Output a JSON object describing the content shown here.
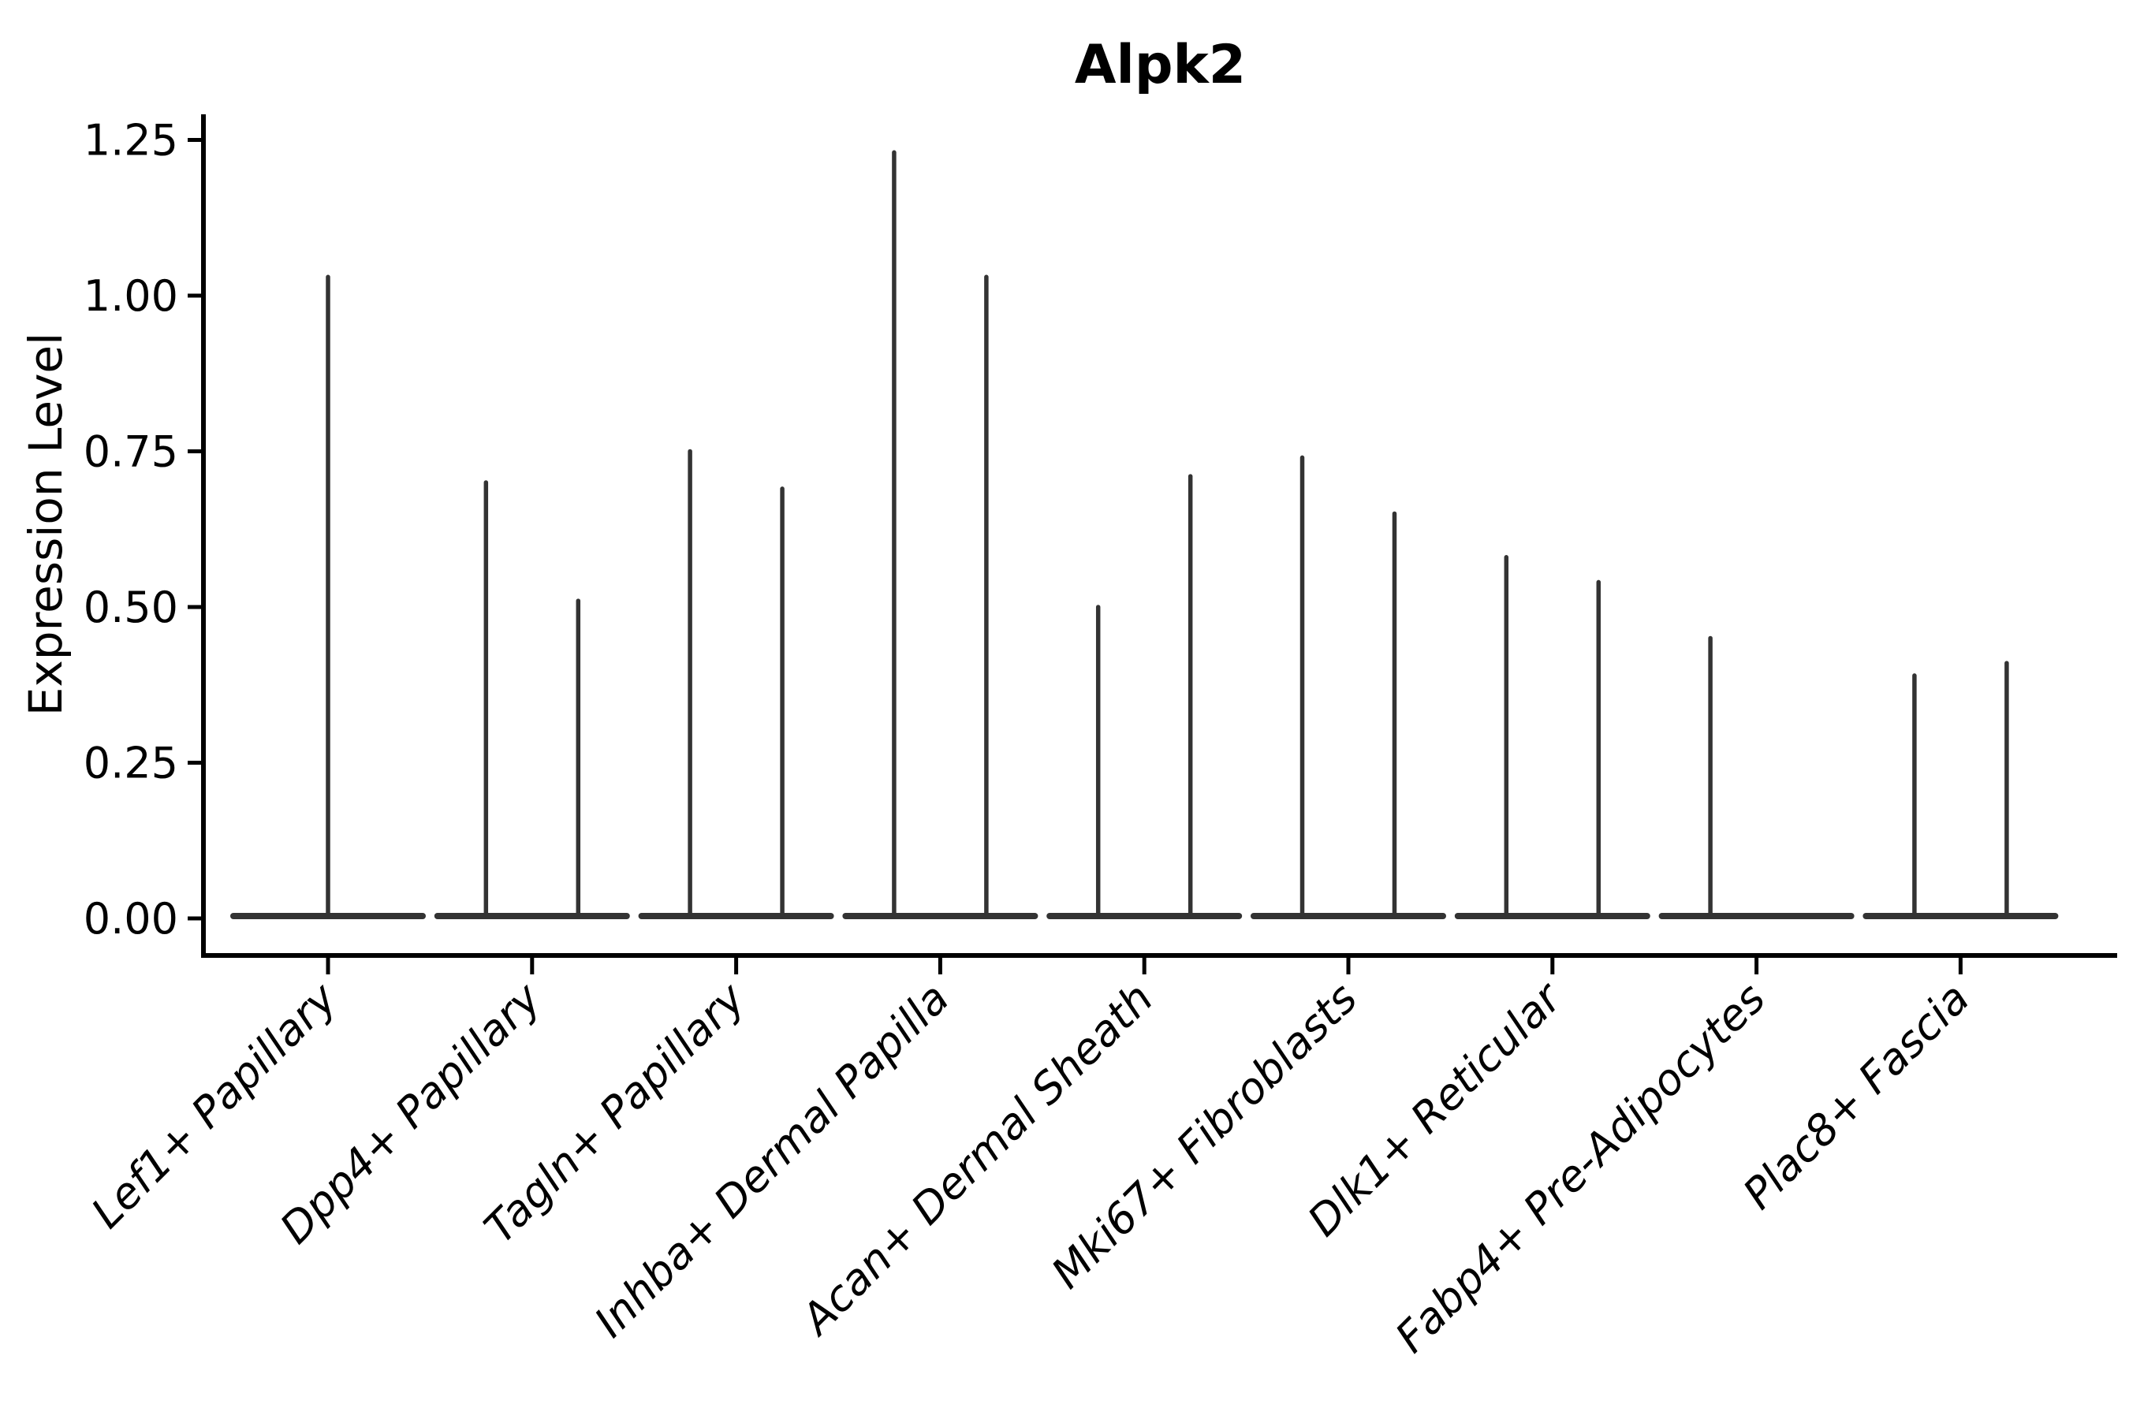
{
  "chart_data": {
    "type": "violin",
    "title": "Alpk2",
    "ylabel": "Expression Level",
    "xlabel": "",
    "ylim": [
      0,
      1.25
    ],
    "yticks": [
      "0.00",
      "0.25",
      "0.50",
      "0.75",
      "1.00",
      "1.25"
    ],
    "ytick_values": [
      0,
      0.25,
      0.5,
      0.75,
      1.0,
      1.25
    ],
    "grid": false,
    "legend": "none",
    "violin_color": "#333333",
    "axis_color": "#000000",
    "categories": [
      "Lef1+ Papillary",
      "Dpp4+ Papillary",
      "Tagln+ Papillary",
      "Inhba+ Dermal Papilla",
      "Acan+ Dermal Sheath",
      "Mki67+ Fibroblasts",
      "Dlk1+ Reticular",
      "Fabp4+ Pre-Adipocytes",
      "Plac8+ Fascia"
    ],
    "violins": [
      {
        "label": "Lef1+ Papillary",
        "base_at_zero": true,
        "spikes": [
          {
            "offset": 0,
            "max": 1.03
          }
        ]
      },
      {
        "label": "Dpp4+ Papillary",
        "base_at_zero": true,
        "spikes": [
          {
            "offset": -0.226,
            "max": 0.7
          },
          {
            "offset": 0.226,
            "max": 0.51
          }
        ]
      },
      {
        "label": "Tagln+ Papillary",
        "base_at_zero": true,
        "spikes": [
          {
            "offset": -0.226,
            "max": 0.75
          },
          {
            "offset": 0.226,
            "max": 0.69
          }
        ]
      },
      {
        "label": "Inhba+ Dermal Papilla",
        "base_at_zero": true,
        "spikes": [
          {
            "offset": -0.226,
            "max": 1.23
          },
          {
            "offset": 0.226,
            "max": 1.03
          }
        ]
      },
      {
        "label": "Acan+ Dermal Sheath",
        "base_at_zero": true,
        "spikes": [
          {
            "offset": -0.226,
            "max": 0.5
          },
          {
            "offset": 0.226,
            "max": 0.71
          }
        ]
      },
      {
        "label": "Mki67+ Fibroblasts",
        "base_at_zero": true,
        "spikes": [
          {
            "offset": -0.226,
            "max": 0.74
          },
          {
            "offset": 0.226,
            "max": 0.65
          }
        ]
      },
      {
        "label": "Dlk1+ Reticular",
        "base_at_zero": true,
        "spikes": [
          {
            "offset": -0.226,
            "max": 0.58
          },
          {
            "offset": 0.226,
            "max": 0.54
          }
        ]
      },
      {
        "label": "Fabp4+ Pre-Adipocytes",
        "base_at_zero": true,
        "spikes": [
          {
            "offset": -0.226,
            "max": 0.45
          }
        ]
      },
      {
        "label": "Plac8+ Fascia",
        "base_at_zero": true,
        "spikes": [
          {
            "offset": -0.226,
            "max": 0.39
          },
          {
            "offset": 0.226,
            "max": 0.41
          }
        ]
      }
    ]
  }
}
